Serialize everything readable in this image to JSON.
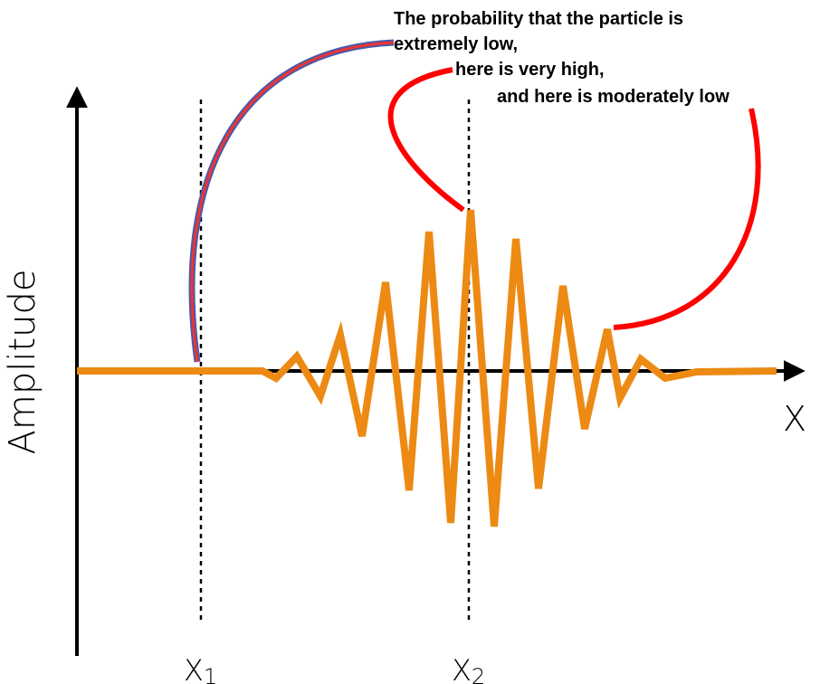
{
  "annotation": {
    "lines": [
      "The probability that the particle is",
      "extremely low,",
      "here is very high,",
      "and here is moderately low"
    ]
  },
  "axes": {
    "y_label": "Amplitude",
    "x_label": "X"
  },
  "markers": [
    {
      "label": "X",
      "subscript": "1"
    },
    {
      "label": "X",
      "subscript": "2"
    }
  ]
}
